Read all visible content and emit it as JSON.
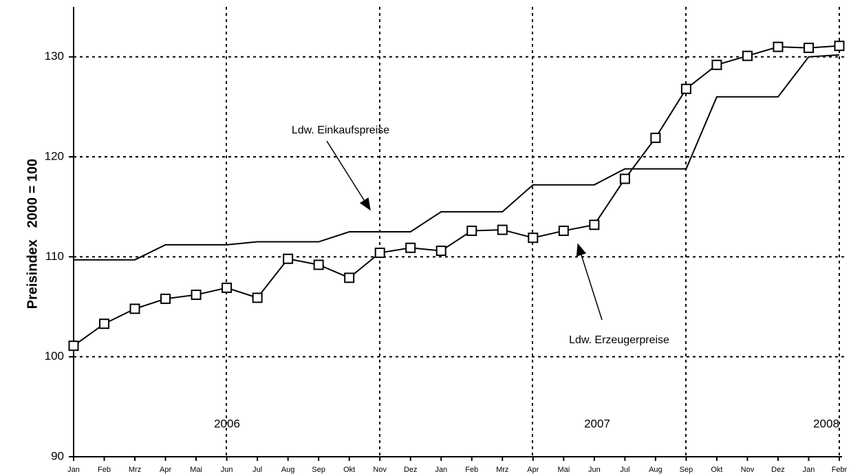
{
  "chart_data": {
    "type": "line",
    "y_label": "Preisindex   2000 = 100",
    "categories": [
      "Jan",
      "Feb",
      "Mrz",
      "Apr",
      "Mai",
      "Jun",
      "Jul",
      "Aug",
      "Sep",
      "Okt",
      "Nov",
      "Dez",
      "Jan",
      "Feb",
      "Mrz",
      "Apr",
      "Mai",
      "Jun",
      "Jul",
      "Aug",
      "Sep",
      "Okt",
      "Nov",
      "Dez",
      "Jan",
      "Febr"
    ],
    "year_labels": [
      "2006",
      "2007",
      "2008"
    ],
    "series": [
      {
        "name": "Ldw. Einkaufspreise",
        "color": "#000000",
        "marker": "none",
        "values": [
          109.7,
          109.7,
          109.7,
          111.2,
          111.2,
          111.2,
          111.5,
          111.5,
          111.5,
          112.5,
          112.5,
          112.5,
          114.5,
          114.5,
          114.5,
          117.2,
          117.2,
          117.2,
          118.8,
          118.8,
          118.8,
          126.0,
          126.0,
          126.0,
          130.0,
          130.2
        ]
      },
      {
        "name": "Ldw. Erzeugerpreise",
        "color": "#000000",
        "marker": "square",
        "values": [
          101.1,
          103.3,
          104.8,
          105.8,
          106.2,
          106.9,
          105.9,
          109.8,
          109.2,
          107.9,
          110.4,
          110.9,
          110.6,
          112.6,
          112.7,
          111.9,
          112.6,
          113.2,
          117.8,
          121.9,
          126.8,
          129.2,
          130.1,
          131.0,
          130.9,
          131.1
        ]
      }
    ],
    "ylim": [
      90,
      135
    ],
    "yticks": [
      90,
      100,
      110,
      120,
      130
    ],
    "grid": true
  }
}
